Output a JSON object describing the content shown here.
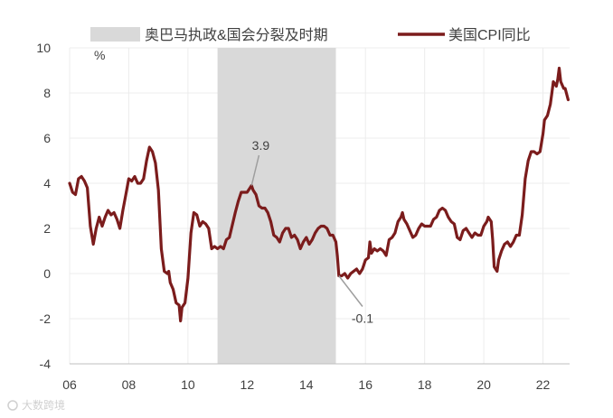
{
  "chart_data": {
    "type": "line",
    "ylabel": "%",
    "ylim": [
      -4,
      10
    ],
    "yticks": [
      -4,
      -2,
      0,
      2,
      4,
      6,
      8,
      10
    ],
    "xlim": [
      2006,
      2022.9
    ],
    "xticks": [
      {
        "value": 2006,
        "label": "06"
      },
      {
        "value": 2008,
        "label": "08"
      },
      {
        "value": 2010,
        "label": "10"
      },
      {
        "value": 2012,
        "label": "12"
      },
      {
        "value": 2014,
        "label": "14"
      },
      {
        "value": 2016,
        "label": "16"
      },
      {
        "value": 2018,
        "label": "18"
      },
      {
        "value": 2020,
        "label": "20"
      },
      {
        "value": 2022,
        "label": "22"
      }
    ],
    "grid": true,
    "legend_placement": "top",
    "shaded_period": {
      "name": "奥巴马执政&国会分裂及时期",
      "start": 2011.0,
      "end": 2015.0,
      "color": "#d9d9d9"
    },
    "series": [
      {
        "name": "美国CPI同比",
        "color": "#7b1c1c",
        "points": [
          [
            2006.0,
            4.0
          ],
          [
            2006.1,
            3.6
          ],
          [
            2006.2,
            3.5
          ],
          [
            2006.3,
            4.2
          ],
          [
            2006.4,
            4.3
          ],
          [
            2006.5,
            4.1
          ],
          [
            2006.6,
            3.8
          ],
          [
            2006.7,
            2.1
          ],
          [
            2006.8,
            1.3
          ],
          [
            2006.9,
            2.0
          ],
          [
            2007.0,
            2.5
          ],
          [
            2007.1,
            2.1
          ],
          [
            2007.2,
            2.5
          ],
          [
            2007.3,
            2.8
          ],
          [
            2007.4,
            2.6
          ],
          [
            2007.5,
            2.7
          ],
          [
            2007.6,
            2.4
          ],
          [
            2007.7,
            2.0
          ],
          [
            2007.8,
            2.8
          ],
          [
            2007.9,
            3.5
          ],
          [
            2008.0,
            4.2
          ],
          [
            2008.1,
            4.1
          ],
          [
            2008.2,
            4.3
          ],
          [
            2008.3,
            4.0
          ],
          [
            2008.4,
            4.0
          ],
          [
            2008.5,
            4.2
          ],
          [
            2008.6,
            5.0
          ],
          [
            2008.7,
            5.6
          ],
          [
            2008.8,
            5.4
          ],
          [
            2008.9,
            4.9
          ],
          [
            2009.0,
            3.7
          ],
          [
            2009.1,
            1.1
          ],
          [
            2009.2,
            0.1
          ],
          [
            2009.3,
            0.0
          ],
          [
            2009.35,
            0.1
          ],
          [
            2009.4,
            -0.4
          ],
          [
            2009.5,
            -0.7
          ],
          [
            2009.6,
            -1.3
          ],
          [
            2009.7,
            -1.4
          ],
          [
            2009.75,
            -2.1
          ],
          [
            2009.8,
            -1.5
          ],
          [
            2009.9,
            -1.3
          ],
          [
            2010.0,
            -0.2
          ],
          [
            2010.1,
            1.8
          ],
          [
            2010.2,
            2.7
          ],
          [
            2010.3,
            2.6
          ],
          [
            2010.4,
            2.1
          ],
          [
            2010.5,
            2.3
          ],
          [
            2010.6,
            2.2
          ],
          [
            2010.7,
            2.0
          ],
          [
            2010.8,
            1.1
          ],
          [
            2010.9,
            1.2
          ],
          [
            2011.0,
            1.1
          ],
          [
            2011.1,
            1.2
          ],
          [
            2011.2,
            1.1
          ],
          [
            2011.3,
            1.5
          ],
          [
            2011.4,
            1.6
          ],
          [
            2011.6,
            2.7
          ],
          [
            2011.7,
            3.2
          ],
          [
            2011.8,
            3.6
          ],
          [
            2011.9,
            3.6
          ],
          [
            2012.0,
            3.6
          ],
          [
            2012.1,
            3.8
          ],
          [
            2012.15,
            3.9
          ],
          [
            2012.2,
            3.7
          ],
          [
            2012.3,
            3.5
          ],
          [
            2012.4,
            3.0
          ],
          [
            2012.5,
            2.9
          ],
          [
            2012.6,
            2.9
          ],
          [
            2012.7,
            2.7
          ],
          [
            2012.8,
            2.3
          ],
          [
            2012.9,
            1.7
          ],
          [
            2013.0,
            1.6
          ],
          [
            2013.1,
            1.4
          ],
          [
            2013.2,
            1.8
          ],
          [
            2013.3,
            2.0
          ],
          [
            2013.4,
            2.0
          ],
          [
            2013.5,
            1.6
          ],
          [
            2013.6,
            1.7
          ],
          [
            2013.7,
            1.5
          ],
          [
            2013.8,
            1.1
          ],
          [
            2013.9,
            1.4
          ],
          [
            2014.0,
            1.6
          ],
          [
            2014.1,
            1.3
          ],
          [
            2014.2,
            1.5
          ],
          [
            2014.3,
            1.8
          ],
          [
            2014.4,
            2.0
          ],
          [
            2014.5,
            2.1
          ],
          [
            2014.6,
            2.1
          ],
          [
            2014.7,
            2.0
          ],
          [
            2014.8,
            1.7
          ],
          [
            2014.9,
            1.7
          ],
          [
            2015.0,
            1.4
          ],
          [
            2015.05,
            0.8
          ],
          [
            2015.1,
            -0.1
          ],
          [
            2015.2,
            -0.1
          ],
          [
            2015.3,
            0.0
          ],
          [
            2015.4,
            -0.2
          ],
          [
            2015.5,
            0.0
          ],
          [
            2015.6,
            0.1
          ],
          [
            2015.7,
            0.2
          ],
          [
            2015.8,
            0.0
          ],
          [
            2015.9,
            0.2
          ],
          [
            2016.0,
            0.6
          ],
          [
            2016.1,
            0.7
          ],
          [
            2016.15,
            1.4
          ],
          [
            2016.2,
            0.9
          ],
          [
            2016.3,
            1.1
          ],
          [
            2016.4,
            1.0
          ],
          [
            2016.5,
            1.1
          ],
          [
            2016.6,
            1.0
          ],
          [
            2016.7,
            0.8
          ],
          [
            2016.8,
            1.5
          ],
          [
            2016.9,
            1.6
          ],
          [
            2017.0,
            1.8
          ],
          [
            2017.1,
            2.3
          ],
          [
            2017.2,
            2.5
          ],
          [
            2017.25,
            2.7
          ],
          [
            2017.3,
            2.4
          ],
          [
            2017.4,
            2.2
          ],
          [
            2017.5,
            1.9
          ],
          [
            2017.6,
            1.6
          ],
          [
            2017.7,
            1.7
          ],
          [
            2017.8,
            2.0
          ],
          [
            2017.9,
            2.2
          ],
          [
            2018.0,
            2.1
          ],
          [
            2018.1,
            2.1
          ],
          [
            2018.2,
            2.1
          ],
          [
            2018.3,
            2.4
          ],
          [
            2018.4,
            2.5
          ],
          [
            2018.5,
            2.8
          ],
          [
            2018.6,
            2.9
          ],
          [
            2018.7,
            2.8
          ],
          [
            2018.8,
            2.5
          ],
          [
            2018.9,
            2.3
          ],
          [
            2019.0,
            2.2
          ],
          [
            2019.1,
            1.6
          ],
          [
            2019.2,
            1.5
          ],
          [
            2019.3,
            1.9
          ],
          [
            2019.4,
            2.0
          ],
          [
            2019.5,
            1.8
          ],
          [
            2019.6,
            1.6
          ],
          [
            2019.7,
            1.8
          ],
          [
            2019.8,
            1.7
          ],
          [
            2019.9,
            1.7
          ],
          [
            2020.0,
            2.1
          ],
          [
            2020.1,
            2.3
          ],
          [
            2020.15,
            2.5
          ],
          [
            2020.25,
            2.3
          ],
          [
            2020.3,
            1.5
          ],
          [
            2020.35,
            0.3
          ],
          [
            2020.45,
            0.1
          ],
          [
            2020.5,
            0.6
          ],
          [
            2020.6,
            1.0
          ],
          [
            2020.7,
            1.3
          ],
          [
            2020.8,
            1.4
          ],
          [
            2020.9,
            1.2
          ],
          [
            2021.0,
            1.4
          ],
          [
            2021.1,
            1.7
          ],
          [
            2021.2,
            1.7
          ],
          [
            2021.3,
            2.6
          ],
          [
            2021.4,
            4.2
          ],
          [
            2021.5,
            5.0
          ],
          [
            2021.6,
            5.4
          ],
          [
            2021.7,
            5.4
          ],
          [
            2021.8,
            5.3
          ],
          [
            2021.9,
            5.4
          ],
          [
            2022.0,
            6.2
          ],
          [
            2022.05,
            6.8
          ],
          [
            2022.15,
            7.0
          ],
          [
            2022.25,
            7.5
          ],
          [
            2022.3,
            8.0
          ],
          [
            2022.35,
            8.5
          ],
          [
            2022.45,
            8.3
          ],
          [
            2022.5,
            8.6
          ],
          [
            2022.55,
            9.1
          ],
          [
            2022.6,
            8.5
          ],
          [
            2022.7,
            8.2
          ],
          [
            2022.75,
            8.2
          ],
          [
            2022.85,
            7.7
          ]
        ]
      }
    ],
    "annotations": [
      {
        "label": "3.9",
        "at": [
          2012.15,
          3.9
        ],
        "text_at": [
          2012.4,
          5.4
        ],
        "anchor": "middle"
      },
      {
        "label": "-0.1",
        "at": [
          2015.1,
          -0.1
        ],
        "text_at": [
          2015.9,
          -1.7
        ],
        "anchor": "middle"
      }
    ],
    "watermark": "大数跨境"
  }
}
